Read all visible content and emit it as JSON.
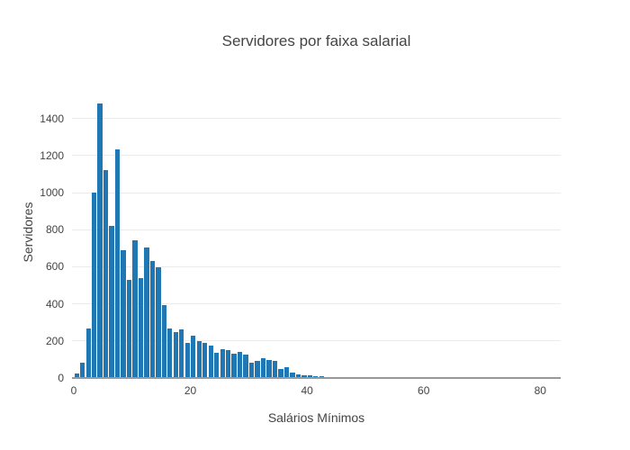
{
  "chart_data": {
    "type": "bar",
    "subtype": "histogram",
    "title": "Servidores por faixa salarial",
    "xlabel": "Salários Mínimos",
    "ylabel": "Servidores",
    "bar_color": "#1f77b4",
    "grid_color": "#ebebeb",
    "axis_line_color": "#999999",
    "text_color": "#444444",
    "grid": "horizontal-only",
    "legend": "none",
    "xlim": [
      -0.3,
      83.5
    ],
    "ylim": [
      0,
      1568
    ],
    "x_ticks": [
      0,
      20,
      40,
      60,
      80
    ],
    "y_ticks": [
      0,
      200,
      400,
      600,
      800,
      1000,
      1200,
      1400
    ],
    "bin_start": 0,
    "bin_width": 1,
    "values": [
      22,
      85,
      265,
      1000,
      1480,
      1120,
      820,
      1235,
      690,
      530,
      745,
      540,
      705,
      630,
      595,
      395,
      265,
      250,
      260,
      190,
      230,
      200,
      190,
      175,
      135,
      155,
      150,
      130,
      140,
      125,
      85,
      90,
      105,
      95,
      90,
      50,
      58,
      28,
      18,
      14,
      15,
      10,
      8,
      6,
      5,
      4,
      3,
      3,
      0,
      4,
      4,
      0,
      3,
      3,
      3,
      2,
      0,
      0,
      0,
      0,
      2,
      2,
      0,
      0,
      0,
      0,
      0,
      0,
      0,
      0,
      0,
      0,
      0,
      0,
      0,
      0,
      2,
      2,
      0,
      0,
      0,
      2,
      2
    ]
  }
}
